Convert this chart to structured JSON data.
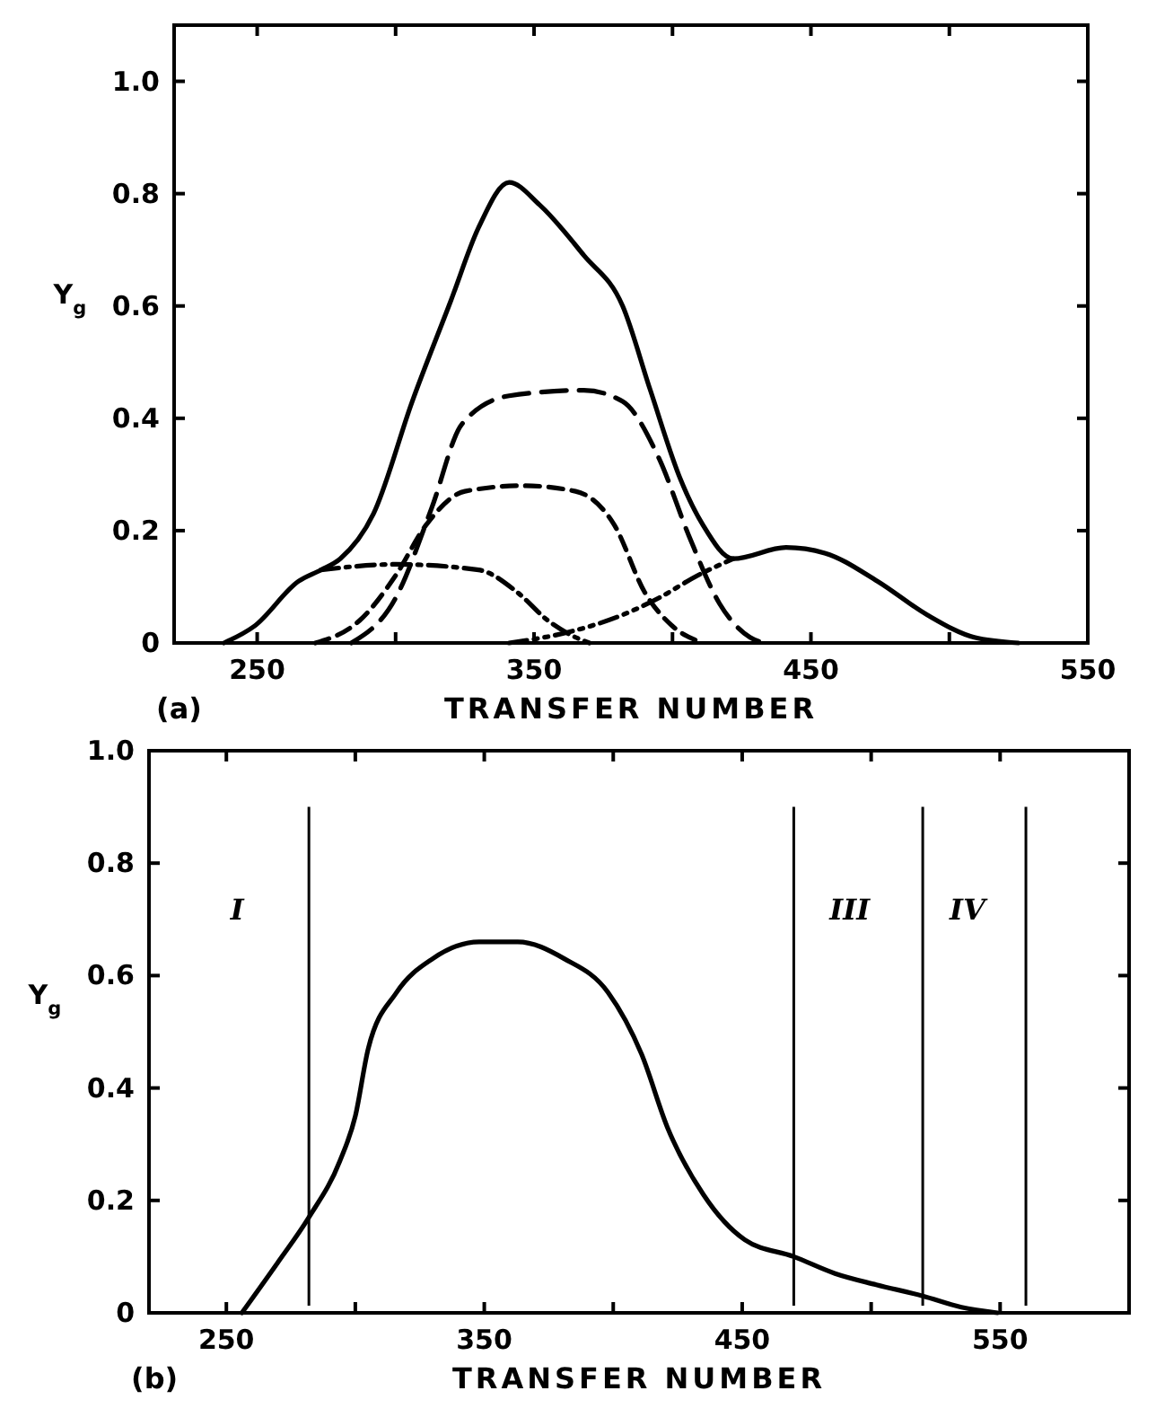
{
  "chart_data": [
    {
      "type": "line",
      "xlabel": "TRANSFER NUMBER",
      "ylabel": "Y$_{g}$",
      "annotations": [
        "(a)"
      ],
      "xlim": [
        220,
        550
      ],
      "ylim": [
        0,
        1.1
      ],
      "xticks": [
        250,
        {
          "value": 300,
          "label": null
        },
        350,
        {
          "value": 400,
          "label": null
        },
        450,
        {
          "value": 500,
          "label": null
        },
        550
      ],
      "yticks": [
        0,
        0.2,
        0.4,
        0.6,
        0.8,
        {
          "value": 1,
          "label": "1.0"
        }
      ],
      "series": [
        {
          "color": "#000000",
          "line_style": "solid",
          "x": [
            238,
            249,
            265,
            273,
            280,
            292,
            306,
            320,
            330,
            341,
            352,
            368,
            382,
            392,
            403,
            411,
            422,
            441,
            455,
            474,
            492,
            509,
            525
          ],
          "values": [
            0,
            0.03,
            0.11,
            0.13,
            0.15,
            0.23,
            0.43,
            0.61,
            0.74,
            0.82,
            0.78,
            0.69,
            0.6,
            0.45,
            0.29,
            0.21,
            0.15,
            0.17,
            0.16,
            0.11,
            0.05,
            0.01,
            0
          ]
        },
        {
          "color": "#000000",
          "line_style": "dashed",
          "x": [
            284,
            300,
            313,
            324,
            341,
            368,
            382,
            395,
            406,
            417,
            428,
            433
          ],
          "values": [
            0,
            0.08,
            0.24,
            0.39,
            0.44,
            0.45,
            0.43,
            0.33,
            0.19,
            0.07,
            0.01,
            0
          ]
        },
        {
          "color": "#000000",
          "line_style": "dashed_short",
          "x": [
            271,
            287,
            300,
            311,
            325,
            346,
            365,
            379,
            390,
            400,
            411
          ],
          "values": [
            0,
            0.04,
            0.12,
            0.21,
            0.27,
            0.28,
            0.27,
            0.21,
            0.09,
            0.03,
            0
          ]
        },
        {
          "color": "#000000",
          "line_style": "dashdot",
          "x": [
            273,
            300,
            330,
            344,
            355,
            365,
            370
          ],
          "values": [
            0.13,
            0.14,
            0.13,
            0.09,
            0.04,
            0.01,
            0
          ]
        },
        {
          "color": "#000000",
          "line_style": "dashdotdot",
          "x": [
            341,
            363,
            382,
            395,
            409,
            422
          ],
          "values": [
            0,
            0.02,
            0.05,
            0.08,
            0.12,
            0.15
          ]
        }
      ]
    },
    {
      "type": "line",
      "xlabel": "TRANSFER NUMBER",
      "ylabel": "Y$_{g}$",
      "xlim": [
        220,
        600
      ],
      "ylim": [
        0,
        1
      ],
      "xticks": [
        250,
        {
          "value": 300,
          "label": null
        },
        350,
        {
          "value": 400,
          "label": null
        },
        450,
        {
          "value": 500,
          "label": null
        },
        550
      ],
      "yticks": [
        0,
        0.2,
        0.4,
        0.6,
        0.8,
        {
          "value": 1,
          "label": "1.0"
        }
      ],
      "ref_lines": [
        {
          "axis": "x",
          "value": 282,
          "color": "#000000"
        },
        {
          "axis": "x",
          "value": 470,
          "color": "#000000"
        },
        {
          "axis": "x",
          "value": 520,
          "color": "#000000"
        },
        {
          "axis": "x",
          "value": 560,
          "color": "#000000"
        }
      ],
      "annotations": [
        "(b)",
        "I",
        "III",
        "IV"
      ],
      "series": [
        {
          "color": "#000000",
          "line_style": "solid",
          "x": [
            256,
            270,
            282,
            294,
            300,
            305,
            316,
            330,
            348,
            363,
            381,
            398,
            411,
            421,
            435,
            451,
            470,
            486,
            502,
            520,
            535,
            549
          ],
          "values": [
            0,
            0.09,
            0.17,
            0.27,
            0.35,
            0.47,
            0.57,
            0.63,
            0.66,
            0.66,
            0.63,
            0.57,
            0.46,
            0.33,
            0.21,
            0.13,
            0.1,
            0.07,
            0.05,
            0.03,
            0.01,
            0
          ]
        }
      ]
    }
  ]
}
